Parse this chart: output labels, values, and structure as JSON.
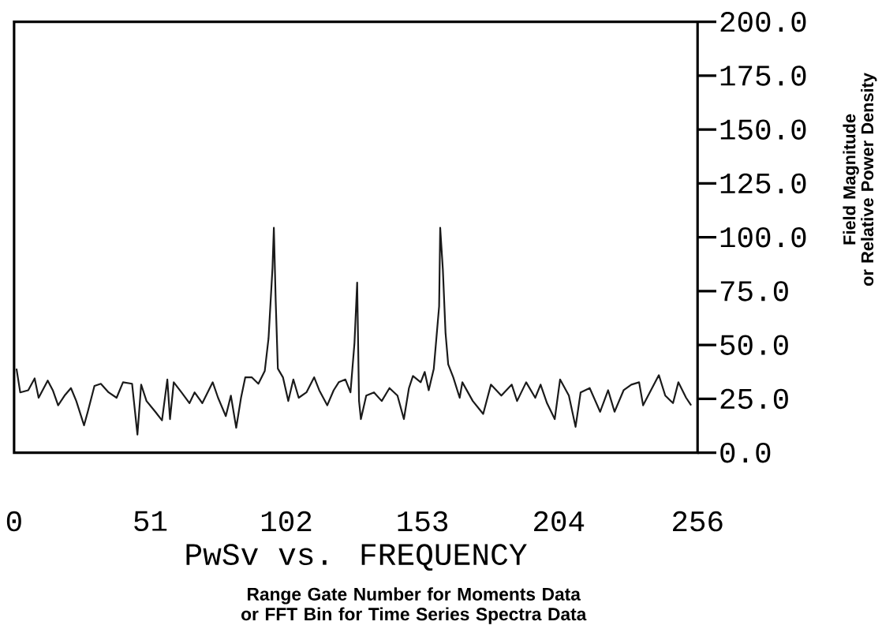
{
  "chart_data": {
    "type": "line",
    "title": "PwSv vs. FREQUENCY",
    "xlabel": "Range Gate Number for Moments Data\nor FFT Bin for Time Series Spectra Data",
    "ylabel": "Field Magnitude\nor Relative Power Density",
    "x": [
      0.9,
      2.3,
      5.3,
      7.7,
      9.2,
      12.6,
      14.5,
      16.5,
      18.9,
      21.3,
      23.3,
      26.2,
      27.6,
      30.1,
      32.5,
      35.4,
      38.4,
      40.8,
      44.2,
      46.2,
      47.6,
      49.6,
      52.9,
      55.4,
      57.4,
      58.4,
      59.8,
      62.7,
      65.7,
      67.6,
      70.5,
      74.4,
      76.4,
      79.3,
      81.2,
      83.2,
      85.0,
      86.6,
      89.0,
      91.5,
      93.9,
      95.3,
      96.8,
      97.3,
      98.0,
      98.8,
      100.7,
      102.7,
      104.6,
      106.6,
      109.5,
      112.4,
      114.3,
      117.3,
      119.7,
      121.6,
      124.1,
      126.0,
      127.5,
      128.5,
      129.2,
      129.9,
      131.9,
      134.8,
      137.7,
      140.6,
      143.6,
      146.0,
      147.9,
      149.4,
      152.3,
      153.8,
      155.3,
      157.2,
      159.2,
      159.6,
      160.6,
      161.6,
      162.6,
      164.5,
      166.9,
      167.9,
      171.8,
      175.7,
      178.6,
      182.5,
      186.4,
      188.4,
      191.8,
      195.2,
      197.2,
      199.6,
      202.5,
      204.5,
      207.8,
      210.3,
      212.2,
      215.6,
      219.5,
      222.5,
      224.9,
      228.3,
      231.2,
      234.1,
      235.6,
      238.1,
      241.5,
      243.9,
      246.8,
      248.8,
      251.7,
      253.6
    ],
    "values": [
      39,
      28,
      29,
      34.5,
      25.5,
      33.5,
      29,
      22,
      26.5,
      30,
      24,
      12.7,
      19,
      31,
      32,
      28,
      25.5,
      32.7,
      32,
      8.4,
      31.6,
      24,
      19,
      15,
      34,
      15.6,
      32.7,
      28,
      23,
      28,
      23,
      32.7,
      25.5,
      17,
      26.5,
      11.6,
      25.5,
      35,
      35,
      32,
      38,
      53,
      86,
      104.4,
      70,
      39,
      35,
      24,
      34,
      25.5,
      28,
      35,
      29,
      22,
      29,
      32.7,
      34,
      28,
      51,
      79,
      24,
      15.6,
      26.5,
      28,
      24,
      30,
      26.5,
      15.6,
      30,
      35.6,
      32.7,
      37.5,
      29,
      39,
      68,
      104.4,
      85,
      55.6,
      41,
      35,
      25.5,
      32.7,
      24,
      18,
      31.6,
      26.5,
      31.6,
      24,
      32.7,
      25.5,
      31.6,
      23,
      15.6,
      34,
      26.5,
      12,
      28,
      30,
      19,
      29,
      19,
      29,
      31.6,
      32.7,
      22,
      28,
      36,
      26.5,
      23,
      32.7,
      25.5,
      22
    ],
    "color": "#1a1a1a",
    "xlim": [
      0,
      256
    ],
    "ylim": [
      0,
      200
    ],
    "xticks": [
      0,
      51,
      102,
      153,
      204,
      256
    ],
    "yticks": [
      {
        "value": 0,
        "label": "0.0"
      },
      {
        "value": 25,
        "label": "25.0"
      },
      {
        "value": 50,
        "label": "50.0"
      },
      {
        "value": 75,
        "label": "75.0"
      },
      {
        "value": 100,
        "label": "100.0"
      },
      {
        "value": 125,
        "label": "125.0"
      },
      {
        "value": 150,
        "label": "150.0"
      },
      {
        "value": 175,
        "label": "175.0"
      },
      {
        "value": 200,
        "label": "200.0"
      }
    ]
  }
}
